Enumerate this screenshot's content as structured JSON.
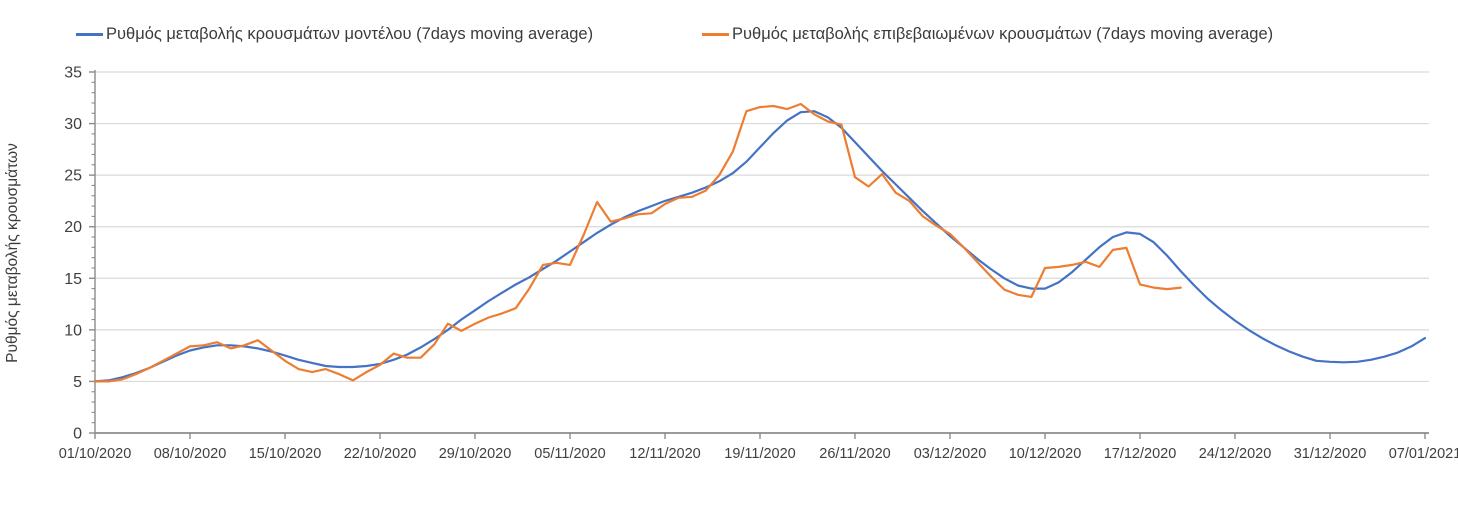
{
  "chart_data": {
    "type": "line",
    "title": "",
    "xlabel": "",
    "ylabel": "Ρυθμός μεταβολής κρουσμάτων",
    "ylim": [
      0,
      35
    ],
    "yticks": [
      0,
      5,
      10,
      15,
      20,
      25,
      30,
      35
    ],
    "y_minor_tick_step": 1,
    "grid": true,
    "legend_position": "top",
    "x_interval": "daily",
    "x_count": 99,
    "xtick_step_days": 7,
    "xtick_labels": [
      "01/10/2020",
      "08/10/2020",
      "15/10/2020",
      "22/10/2020",
      "29/10/2020",
      "05/11/2020",
      "12/11/2020",
      "19/11/2020",
      "26/11/2020",
      "03/12/2020",
      "10/12/2020",
      "17/12/2020",
      "24/12/2020",
      "31/12/2020",
      "07/01/2021"
    ],
    "series": [
      {
        "name": "Ρυθμός μεταβολής κρουσμάτων μοντέλου (7days moving average)",
        "color": "#4472C4",
        "values": [
          5.0,
          5.1,
          5.4,
          5.8,
          6.3,
          6.9,
          7.5,
          8.0,
          8.3,
          8.5,
          8.5,
          8.4,
          8.2,
          7.9,
          7.5,
          7.1,
          6.8,
          6.5,
          6.4,
          6.4,
          6.5,
          6.7,
          7.1,
          7.6,
          8.3,
          9.1,
          10.0,
          11.0,
          11.9,
          12.8,
          13.6,
          14.4,
          15.1,
          15.9,
          16.7,
          17.6,
          18.5,
          19.4,
          20.2,
          20.9,
          21.5,
          22.0,
          22.5,
          22.9,
          23.3,
          23.8,
          24.4,
          25.2,
          26.3,
          27.7,
          29.1,
          30.3,
          31.1,
          31.2,
          30.6,
          29.6,
          28.2,
          26.8,
          25.4,
          24.1,
          22.8,
          21.5,
          20.3,
          19.1,
          18.0,
          16.9,
          15.9,
          15.0,
          14.3,
          14.0,
          14.0,
          14.6,
          15.6,
          16.8,
          18.0,
          19.0,
          19.45,
          19.3,
          18.5,
          17.2,
          15.7,
          14.3,
          13.0,
          11.9,
          10.9,
          10.0,
          9.2,
          8.5,
          7.9,
          7.4,
          7.0,
          6.9,
          6.85,
          6.9,
          7.1,
          7.4,
          7.8,
          8.4,
          9.2
        ]
      },
      {
        "name": "Ρυθμός μεταβολής επιβεβαιωμένων κρουσμάτων (7days moving average)",
        "color": "#ED7D31",
        "values": [
          5.0,
          5.0,
          5.2,
          5.7,
          6.3,
          7.0,
          7.7,
          8.4,
          8.5,
          8.8,
          8.2,
          8.5,
          9.0,
          8.0,
          7.0,
          6.2,
          5.9,
          6.2,
          5.7,
          5.1,
          5.9,
          6.6,
          7.7,
          7.3,
          7.3,
          8.6,
          10.6,
          9.9,
          10.6,
          11.2,
          11.6,
          12.1,
          14.0,
          16.3,
          16.5,
          16.3,
          19.2,
          22.4,
          20.5,
          20.8,
          21.2,
          21.3,
          22.2,
          22.8,
          22.9,
          23.5,
          25.0,
          27.3,
          31.2,
          31.6,
          31.7,
          31.4,
          31.9,
          30.9,
          30.2,
          29.9,
          24.8,
          23.9,
          25.1,
          23.3,
          22.5,
          21.0,
          20.1,
          19.3,
          18.0,
          16.6,
          15.2,
          13.9,
          13.4,
          13.2,
          16.0,
          16.1,
          16.3,
          16.6,
          16.1,
          17.75,
          17.95,
          14.4,
          14.1,
          13.95,
          14.1
        ]
      }
    ]
  },
  "style": {
    "grid_color": "#D9D9D9",
    "axis_color": "#8C8C8C",
    "text_color": "#404040",
    "background": "#FFFFFF"
  }
}
